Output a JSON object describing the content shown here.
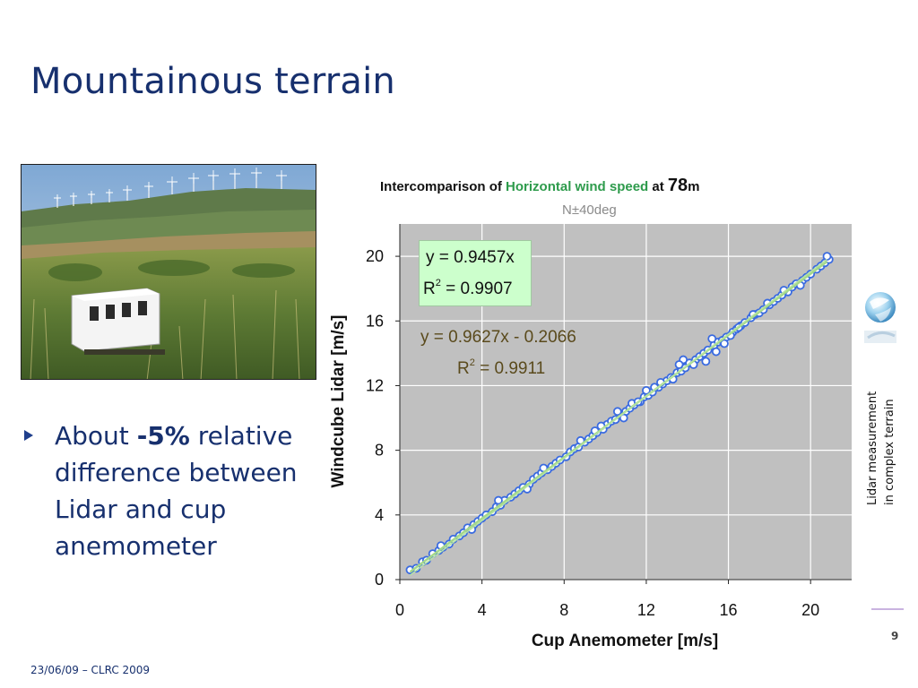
{
  "slide": {
    "title": "Mountainous terrain",
    "footer": "23/06/09 – CLRC 2009",
    "page_number": "9",
    "side_caption_line1": "Lidar measurement",
    "side_caption_line2": "in complex terrain"
  },
  "bullet": {
    "prefix": "About ",
    "emphasis": "-5%",
    "suffix": " relative difference between Lidar and cup anemometer"
  },
  "photo": {
    "alt": "Lidar unit on a hillside with wind turbines on the ridge"
  },
  "colors": {
    "title": "#17306e",
    "plot_background": "#c0c0c0",
    "marker_fill": "#ffffff",
    "marker_edge": "#3a6be0",
    "fit_line": "#a4d88a",
    "highlight_text": "#2e9b4c",
    "eq_box": "#ccffcc"
  },
  "chart_data": {
    "type": "scatter",
    "title_parts": [
      "Intercomparison of ",
      "Horizontal wind speed",
      " at ",
      "78",
      "m"
    ],
    "subtitle": "N±40deg",
    "xlabel": "Cup Anemometer  [m/s]",
    "ylabel": "Windcube Lidar  [m/s]",
    "xlim": [
      0,
      22
    ],
    "ylim": [
      0,
      22
    ],
    "xticks": [
      0,
      4,
      8,
      12,
      16,
      20
    ],
    "yticks": [
      0,
      4,
      8,
      12,
      16,
      20
    ],
    "grid": true,
    "fits": [
      {
        "equation": "y = 0.9457x",
        "r2_label": "R",
        "r2_value": " = 0.9907",
        "slope": 0.9457,
        "intercept": 0,
        "boxed": true
      },
      {
        "equation": "y = 0.9627x - 0.2066",
        "r2_label": "R",
        "r2_value": " = 0.9911",
        "slope": 0.9627,
        "intercept": -0.2066,
        "boxed": false
      }
    ],
    "series": [
      {
        "x": [
          0.5,
          0.8,
          1.1,
          1.3,
          1.6,
          1.9,
          2.1,
          2.4,
          2.6,
          2.9,
          3.1,
          3.3,
          3.6,
          3.8,
          4.0,
          4.2,
          4.5,
          4.7,
          4.9,
          5.1,
          5.4,
          5.6,
          5.8,
          6.0,
          6.3,
          6.5,
          6.7,
          6.9,
          7.2,
          7.4,
          7.6,
          7.8,
          8.1,
          8.3,
          8.5,
          8.7,
          9.0,
          9.2,
          9.4,
          9.6,
          9.9,
          10.1,
          10.3,
          10.5,
          10.8,
          11.0,
          11.2,
          11.4,
          11.7,
          11.9,
          12.1,
          12.3,
          12.6,
          12.8,
          13.0,
          13.2,
          13.5,
          13.7,
          13.9,
          14.1,
          14.4,
          14.6,
          14.8,
          15.0,
          15.3,
          15.5,
          15.7,
          15.9,
          16.2,
          16.4,
          16.6,
          16.8,
          17.1,
          17.3,
          17.5,
          17.7,
          18.0,
          18.2,
          18.4,
          18.6,
          18.9,
          19.1,
          19.3,
          19.6,
          19.8,
          20.0,
          20.3,
          20.5,
          20.7,
          20.9,
          2.0,
          3.5,
          4.8,
          6.2,
          7.0,
          8.8,
          9.8,
          10.6,
          11.3,
          12.0,
          12.7,
          13.3,
          13.8,
          14.3,
          15.2,
          15.8,
          16.5,
          17.2,
          17.9,
          18.7,
          19.5,
          20.8,
          10.9,
          12.4,
          13.6,
          14.9,
          15.4,
          16.1,
          9.5,
          11.6
        ],
        "y": [
          0.6,
          0.7,
          1.1,
          1.2,
          1.6,
          1.8,
          2.0,
          2.2,
          2.5,
          2.7,
          2.9,
          3.2,
          3.4,
          3.6,
          3.8,
          4.0,
          4.2,
          4.5,
          4.6,
          4.9,
          5.1,
          5.3,
          5.5,
          5.7,
          5.9,
          6.2,
          6.4,
          6.6,
          6.8,
          7.0,
          7.2,
          7.4,
          7.6,
          7.9,
          8.1,
          8.2,
          8.5,
          8.7,
          8.9,
          9.1,
          9.3,
          9.6,
          9.8,
          9.9,
          10.2,
          10.4,
          10.6,
          10.8,
          11.0,
          11.3,
          11.4,
          11.6,
          11.9,
          12.1,
          12.3,
          12.5,
          12.8,
          12.9,
          13.1,
          13.4,
          13.6,
          13.8,
          14.0,
          14.2,
          14.5,
          14.7,
          14.8,
          15.0,
          15.3,
          15.5,
          15.7,
          15.9,
          16.2,
          16.4,
          16.5,
          16.7,
          17.0,
          17.2,
          17.4,
          17.6,
          17.8,
          18.1,
          18.3,
          18.5,
          18.7,
          18.9,
          19.2,
          19.4,
          19.6,
          19.8,
          2.1,
          3.1,
          4.9,
          5.6,
          6.9,
          8.6,
          9.5,
          10.4,
          10.9,
          11.7,
          12.2,
          12.4,
          13.6,
          13.3,
          14.9,
          14.6,
          15.6,
          16.4,
          17.1,
          17.9,
          18.2,
          20.0,
          10.0,
          11.9,
          13.3,
          13.5,
          14.1,
          15.1,
          9.2,
          11.0
        ]
      }
    ]
  }
}
